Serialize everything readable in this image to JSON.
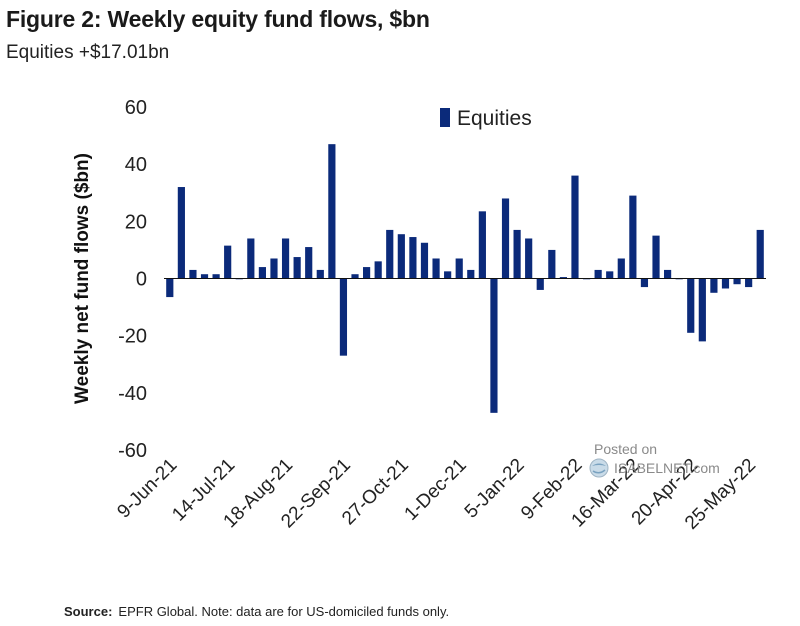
{
  "title": "Figure 2: Weekly equity fund flows, $bn",
  "subtitle": "Equities +$17.01bn",
  "footer": {
    "source_label": "Source:",
    "source_text": "EPFR Global. Note: data are for US-domiciled funds only."
  },
  "watermark": {
    "posted": "Posted on",
    "site": "ISABELNET.com"
  },
  "colors": {
    "bar": "#0b2a7a",
    "axis": "#111111",
    "text": "#222222"
  },
  "chart_data": {
    "type": "bar",
    "title": "Figure 2: Weekly equity fund flows, $bn",
    "xlabel": "",
    "ylabel": "Weekly net fund flows ($bn)",
    "ylim": [
      -60,
      60
    ],
    "yticks": [
      60,
      40,
      20,
      0,
      -20,
      -40,
      -60
    ],
    "legend": {
      "position": "top-right",
      "entries": [
        "Equities"
      ]
    },
    "grid": false,
    "xtick_labels": [
      "9-Jun-21",
      "14-Jul-21",
      "18-Aug-21",
      "22-Sep-21",
      "27-Oct-21",
      "1-Dec-21",
      "5-Jan-22",
      "9-Feb-22",
      "16-Mar-22",
      "20-Apr-22",
      "25-May-22"
    ],
    "xtick_every": 5,
    "series": [
      {
        "name": "Equities",
        "values": [
          -6.5,
          32,
          3,
          1.5,
          1.5,
          11.5,
          0,
          14,
          4,
          7,
          14,
          7.5,
          11,
          3,
          47,
          -27,
          1.5,
          4,
          6,
          17,
          15.5,
          14.5,
          12.5,
          7,
          2.5,
          7,
          3,
          23.5,
          -47,
          28,
          17,
          14,
          -4,
          10,
          0.5,
          36,
          0,
          3,
          2.5,
          7,
          29,
          -3,
          15,
          3,
          0,
          -19,
          -22,
          -5,
          -3.5,
          -2,
          -3,
          17
        ]
      }
    ]
  }
}
